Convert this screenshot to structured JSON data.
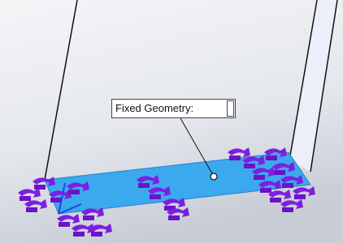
{
  "callout": {
    "label": "Fixed Geometry:"
  }
}
